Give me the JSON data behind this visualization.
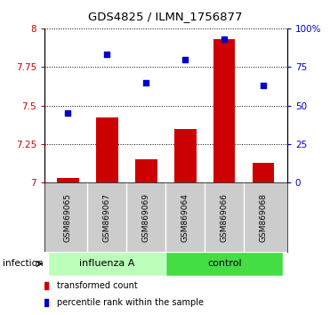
{
  "title": "GDS4825 / ILMN_1756877",
  "samples": [
    "GSM869065",
    "GSM869067",
    "GSM869069",
    "GSM869064",
    "GSM869066",
    "GSM869068"
  ],
  "groups": [
    "influenza A",
    "influenza A",
    "influenza A",
    "control",
    "control",
    "control"
  ],
  "bar_values": [
    7.03,
    7.42,
    7.15,
    7.35,
    7.93,
    7.13
  ],
  "dot_values": [
    45,
    83,
    65,
    80,
    93,
    63
  ],
  "ylim_left": [
    7.0,
    8.0
  ],
  "ylim_right": [
    0,
    100
  ],
  "yticks_left": [
    7.0,
    7.25,
    7.5,
    7.75,
    8.0
  ],
  "yticks_right": [
    0,
    25,
    50,
    75,
    100
  ],
  "ytick_labels_left": [
    "7",
    "7.25",
    "7.5",
    "7.75",
    "8"
  ],
  "ytick_labels_right": [
    "0",
    "25",
    "50",
    "75",
    "100%"
  ],
  "bar_color": "#cc0000",
  "dot_color": "#0000cc",
  "bar_width": 0.55,
  "group_colors": {
    "influenza A": "#bbffbb",
    "control": "#44dd44"
  },
  "group_label": "infection",
  "background_color": "#ffffff",
  "tick_label_color_left": "#cc0000",
  "tick_label_color_right": "#0000cc",
  "legend_bar_label": "transformed count",
  "legend_dot_label": "percentile rank within the sample",
  "label_bg_color": "#cccccc"
}
